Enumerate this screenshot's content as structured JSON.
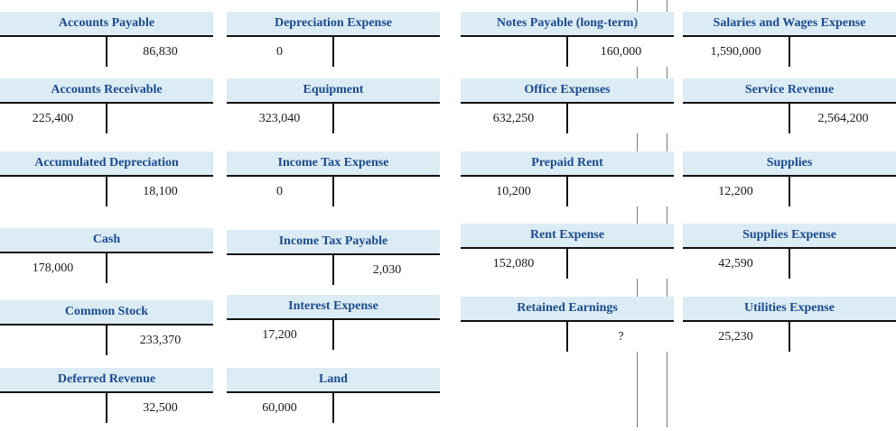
{
  "accounts": [
    {
      "name": "Accounts Payable",
      "debit": "",
      "credit": "86,830"
    },
    {
      "name": "Depreciation Expense",
      "debit": "0",
      "credit": ""
    },
    {
      "name": "Notes Payable (long-term)",
      "debit": "",
      "credit": "160,000"
    },
    {
      "name": "Salaries and Wages Expense",
      "debit": "1,590,000",
      "credit": ""
    },
    {
      "name": "Accounts Receivable",
      "debit": "225,400",
      "credit": ""
    },
    {
      "name": "Equipment",
      "debit": "323,040",
      "credit": ""
    },
    {
      "name": "Office Expenses",
      "debit": "632,250",
      "credit": ""
    },
    {
      "name": "Service Revenue",
      "debit": "",
      "credit": "2,564,200"
    },
    {
      "name": "Accumulated Depreciation",
      "debit": "",
      "credit": "18,100"
    },
    {
      "name": "Income Tax Expense",
      "debit": "0",
      "credit": ""
    },
    {
      "name": "Prepaid Rent",
      "debit": "10,200",
      "credit": ""
    },
    {
      "name": "Supplies",
      "debit": "12,200",
      "credit": ""
    },
    {
      "name": "Cash",
      "debit": "178,000",
      "credit": ""
    },
    {
      "name": "Income Tax Payable",
      "debit": "",
      "credit": "2,030"
    },
    {
      "name": "Rent Expense",
      "debit": "152,080",
      "credit": ""
    },
    {
      "name": "Supplies Expense",
      "debit": "42,590",
      "credit": ""
    },
    {
      "name": "Common Stock",
      "debit": "",
      "credit": "233,370"
    },
    {
      "name": "Interest Expense",
      "debit": "17,200",
      "credit": ""
    },
    {
      "name": "Retained Earnings",
      "debit": "",
      "credit": "?"
    },
    {
      "name": "Utilities Expense",
      "debit": "25,230",
      "credit": ""
    },
    {
      "name": "Deferred Revenue",
      "debit": "",
      "credit": "32,500"
    },
    {
      "name": "Land",
      "debit": "60,000",
      "credit": ""
    }
  ],
  "colors": {
    "header_background": "#dcecf5",
    "header_text": "#1b4b8f",
    "rule": "#111111",
    "page_divider": "#7a7a7a"
  }
}
